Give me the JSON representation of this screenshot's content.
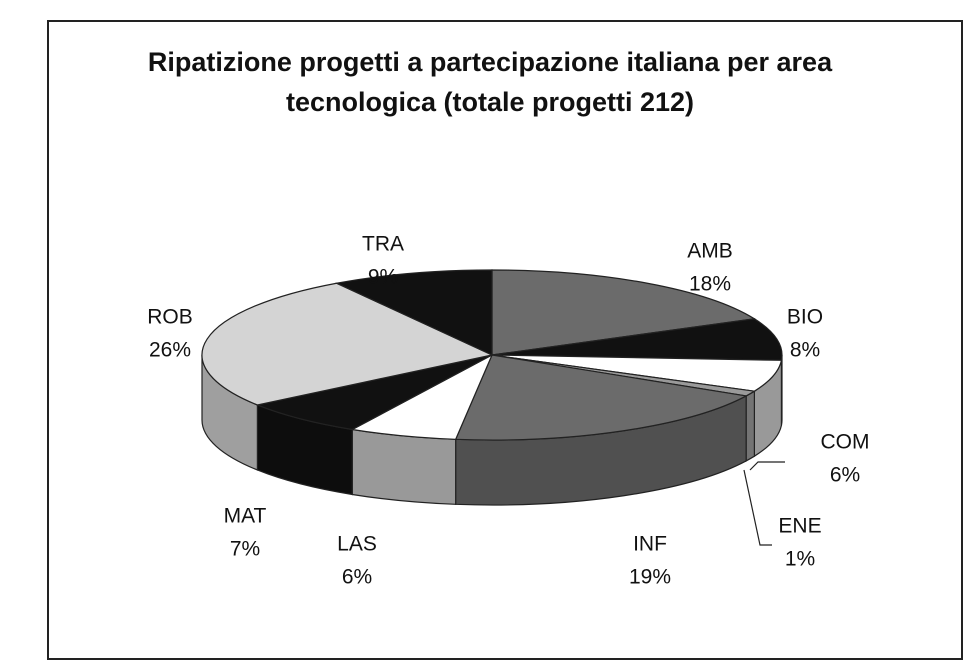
{
  "chart_data": {
    "type": "pie3d",
    "title": "Ripatizione progetti a partecipazione italiana per area tecnologica (totale progetti 212)",
    "categories": [
      "AMB",
      "BIO",
      "COM",
      "ENE",
      "INF",
      "LAS",
      "MAT",
      "ROB",
      "TRA"
    ],
    "values": [
      18,
      8,
      6,
      1,
      19,
      6,
      7,
      26,
      9
    ],
    "value_labels": [
      "18%",
      "8%",
      "6%",
      "1%",
      "19%",
      "6%",
      "7%",
      "26%",
      "9%"
    ],
    "colors": [
      "#6b6b6b",
      "#111111",
      "#ffffff",
      "#9a9a9a",
      "#6b6b6b",
      "#ffffff",
      "#111111",
      "#d4d4d4",
      "#111111"
    ]
  }
}
